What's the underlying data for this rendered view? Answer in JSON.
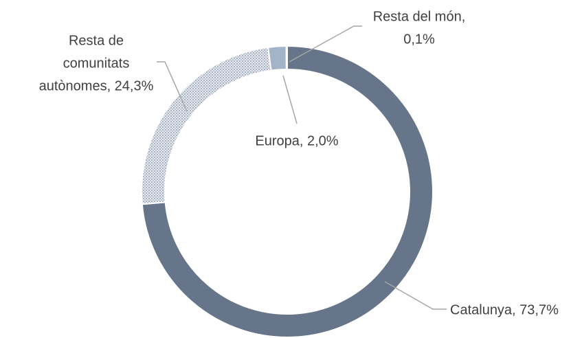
{
  "chart_data": {
    "type": "donut",
    "labels": [
      [
        "Catalunya, 73,7%"
      ],
      [
        "Resta de",
        "comunitats",
        "autònomes, 24,3%"
      ],
      [
        "Europa, 2,0%"
      ],
      [
        "Resta del món,",
        "0,1%"
      ]
    ],
    "values": [
      73.7,
      24.3,
      2.0,
      0.1
    ],
    "colors": [
      "#66758a",
      "url(#dots)",
      "#a3b3c8",
      "#eef1f5"
    ]
  }
}
